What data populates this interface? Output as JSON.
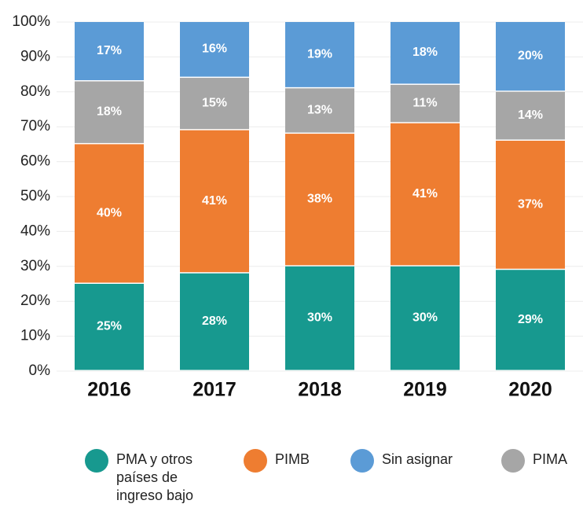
{
  "chart_data": {
    "type": "stacked_bar",
    "categories": [
      "2016",
      "2017",
      "2018",
      "2019",
      "2020"
    ],
    "series": [
      {
        "name": "PMA y otros países de ingreso bajo",
        "color": "#17998f",
        "values": [
          25,
          28,
          30,
          30,
          29
        ],
        "value_labels": [
          "25%",
          "28%",
          "30%",
          "30%",
          "29%"
        ]
      },
      {
        "name": "PIMB",
        "color": "#ee7d31",
        "values": [
          40,
          41,
          38,
          41,
          37
        ],
        "value_labels": [
          "40%",
          "41%",
          "38%",
          "41%",
          "37%"
        ]
      },
      {
        "name": "PIMA",
        "color": "#a6a6a6",
        "values": [
          18,
          15,
          13,
          11,
          14
        ],
        "value_labels": [
          "18%",
          "15%",
          "13%",
          "11%",
          "14%"
        ]
      },
      {
        "name": "Sin asignar",
        "color": "#5b9bd6",
        "values": [
          17,
          16,
          19,
          18,
          20
        ],
        "value_labels": [
          "17%",
          "16%",
          "19%",
          "18%",
          "20%"
        ]
      }
    ],
    "ylim": [
      0,
      100
    ],
    "yticks": [
      {
        "value": 0,
        "label": "0%"
      },
      {
        "value": 10,
        "label": "10%"
      },
      {
        "value": 20,
        "label": "20%"
      },
      {
        "value": 30,
        "label": "30%"
      },
      {
        "value": 40,
        "label": "40%"
      },
      {
        "value": 50,
        "label": "50%"
      },
      {
        "value": 60,
        "label": "60%"
      },
      {
        "value": 70,
        "label": "70%"
      },
      {
        "value": 80,
        "label": "80%"
      },
      {
        "value": 90,
        "label": "90%"
      },
      {
        "value": 100,
        "label": "100%"
      }
    ],
    "grid": true
  }
}
